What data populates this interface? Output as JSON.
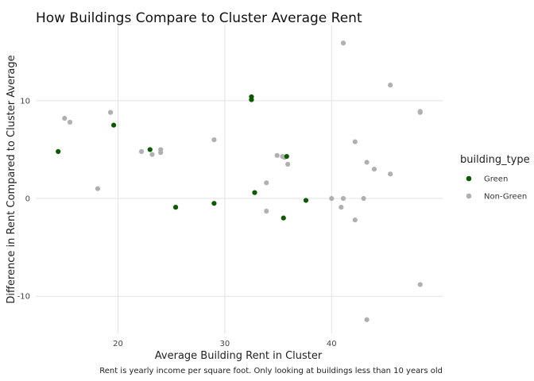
{
  "chart_data": {
    "type": "scatter",
    "title": "How Buildings Compare to Cluster Average Rent",
    "xlabel": "Average Building Rent in Cluster",
    "ylabel": "Difference in Rent Compared to Cluster Average",
    "caption": "Rent is yearly income per square foot. Only looking at buildings less than 10 years old",
    "xlim": [
      12.3,
      50.4
    ],
    "ylim": [
      -13.8,
      17.7
    ],
    "x_ticks": [
      20,
      30,
      40
    ],
    "y_ticks": [
      -10,
      0,
      10
    ],
    "x_tick_labels": [
      "20",
      "30",
      "40"
    ],
    "y_tick_labels": [
      "-10",
      "0",
      "10"
    ],
    "grid": true,
    "legend": {
      "title": "building_type",
      "position": "right"
    },
    "series": [
      {
        "name": "Green",
        "color": "#0b5a00",
        "points": [
          {
            "x": 14.4,
            "y": 4.8
          },
          {
            "x": 19.6,
            "y": 7.5
          },
          {
            "x": 23.0,
            "y": 5.0
          },
          {
            "x": 25.4,
            "y": -0.9
          },
          {
            "x": 29.0,
            "y": -0.5
          },
          {
            "x": 32.5,
            "y": 10.4
          },
          {
            "x": 32.5,
            "y": 10.1
          },
          {
            "x": 32.8,
            "y": 0.6
          },
          {
            "x": 35.5,
            "y": -2.0
          },
          {
            "x": 35.8,
            "y": 4.3
          },
          {
            "x": 37.6,
            "y": -0.2
          }
        ]
      },
      {
        "name": "Non-Green",
        "color": "#b0b0b0",
        "points": [
          {
            "x": 15.0,
            "y": 8.2
          },
          {
            "x": 15.5,
            "y": 7.8
          },
          {
            "x": 18.1,
            "y": 1.0
          },
          {
            "x": 19.3,
            "y": 8.8
          },
          {
            "x": 22.2,
            "y": 4.8
          },
          {
            "x": 23.2,
            "y": 4.5
          },
          {
            "x": 24.0,
            "y": 5.0
          },
          {
            "x": 24.0,
            "y": 4.7
          },
          {
            "x": 25.4,
            "y": -0.9
          },
          {
            "x": 29.0,
            "y": 6.0
          },
          {
            "x": 33.9,
            "y": 1.6
          },
          {
            "x": 33.9,
            "y": -1.3
          },
          {
            "x": 34.9,
            "y": 4.4
          },
          {
            "x": 35.4,
            "y": 4.3
          },
          {
            "x": 35.6,
            "y": 4.2
          },
          {
            "x": 35.9,
            "y": 3.5
          },
          {
            "x": 40.0,
            "y": 0.0
          },
          {
            "x": 40.9,
            "y": -0.9
          },
          {
            "x": 41.1,
            "y": 0.0
          },
          {
            "x": 41.1,
            "y": 15.9
          },
          {
            "x": 42.2,
            "y": 5.8
          },
          {
            "x": 42.2,
            "y": -2.2
          },
          {
            "x": 43.0,
            "y": 0.0
          },
          {
            "x": 43.3,
            "y": 3.7
          },
          {
            "x": 43.3,
            "y": -12.4
          },
          {
            "x": 44.0,
            "y": 3.0
          },
          {
            "x": 45.5,
            "y": 11.6
          },
          {
            "x": 45.5,
            "y": 2.5
          },
          {
            "x": 48.3,
            "y": 8.8
          },
          {
            "x": 48.3,
            "y": 8.9
          },
          {
            "x": 48.3,
            "y": -8.8
          }
        ]
      }
    ]
  }
}
